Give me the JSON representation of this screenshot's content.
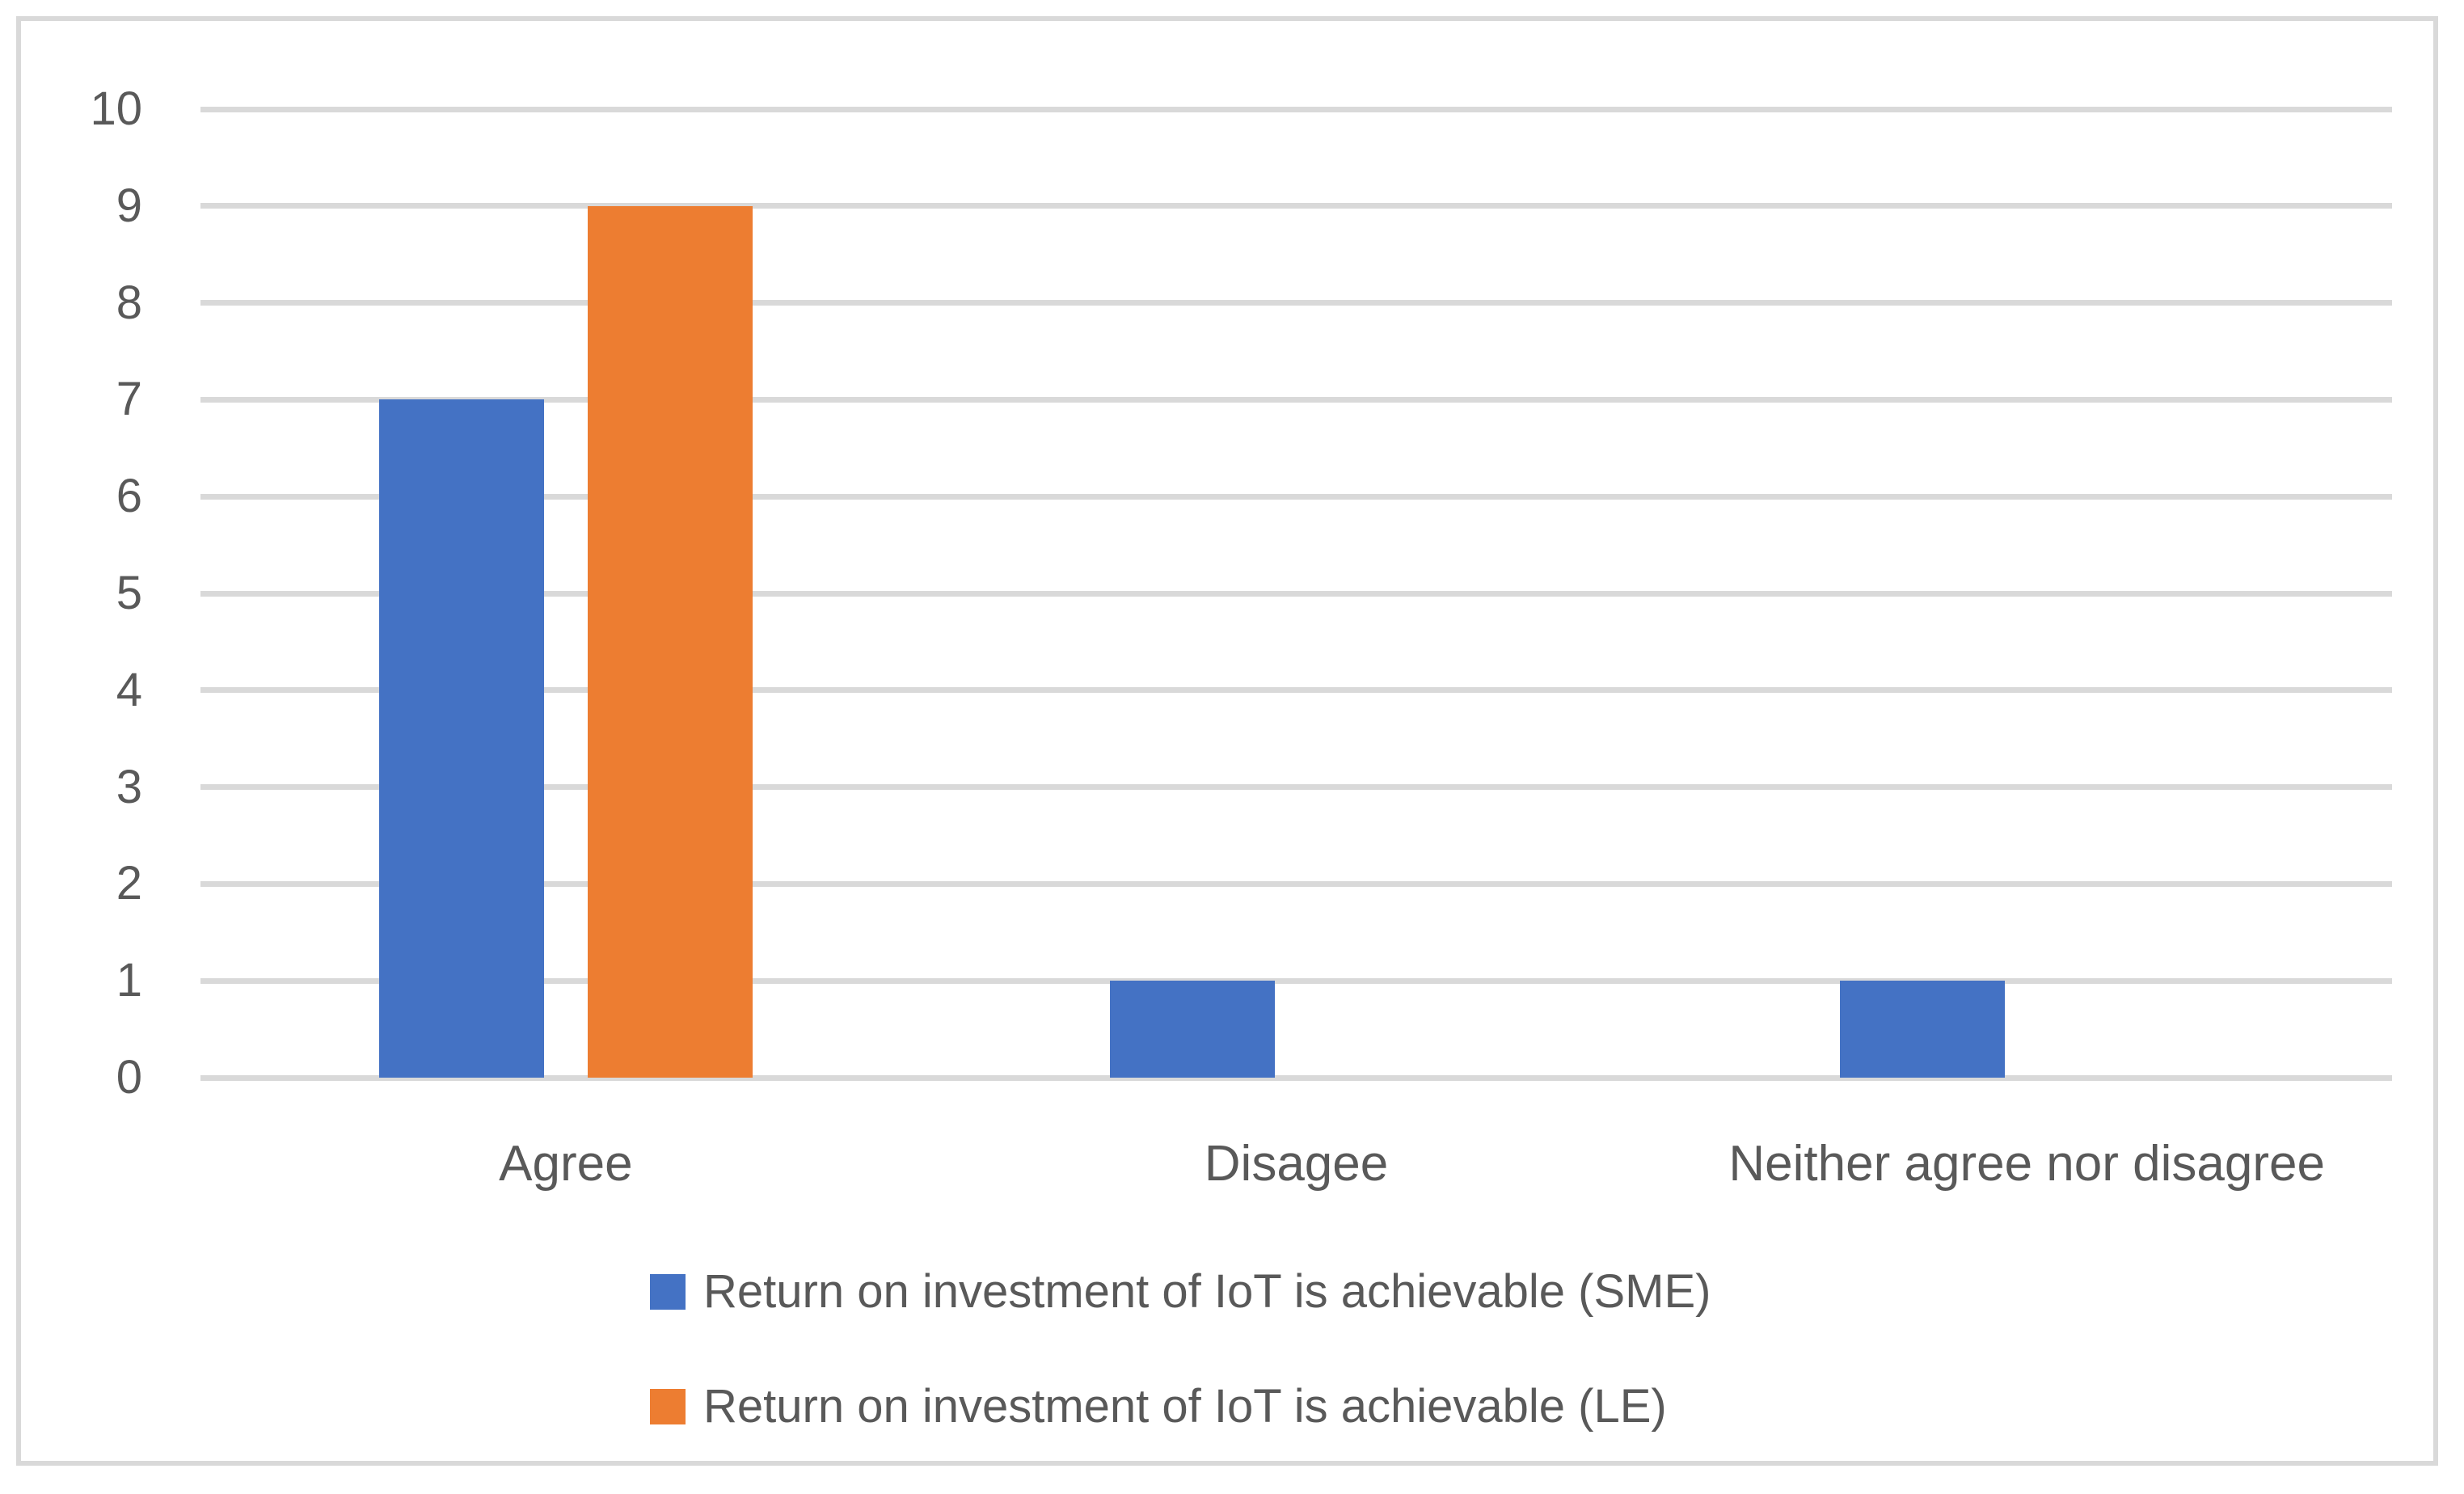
{
  "chart_data": {
    "type": "bar",
    "title": "",
    "xlabel": "",
    "ylabel": "",
    "categories": [
      "Agree",
      "Disagee",
      "Neither agree nor disagree"
    ],
    "series": [
      {
        "name": "Return on investment of IoT is achievable (SME)",
        "color": "#4472C4",
        "values": [
          7,
          1,
          1
        ]
      },
      {
        "name": "Return on investment of IoT is achievable (LE)",
        "color": "#ED7D31",
        "values": [
          9,
          0,
          0
        ]
      }
    ],
    "ylim": [
      0,
      10
    ],
    "yticks": [
      0,
      1,
      2,
      3,
      4,
      5,
      6,
      7,
      8,
      9,
      10
    ],
    "grid": true,
    "legend_position": "bottom",
    "colors": {
      "gridline": "#D9D9D9",
      "border": "#D9D9D9",
      "text": "#595959",
      "background": "#FFFFFF"
    }
  }
}
